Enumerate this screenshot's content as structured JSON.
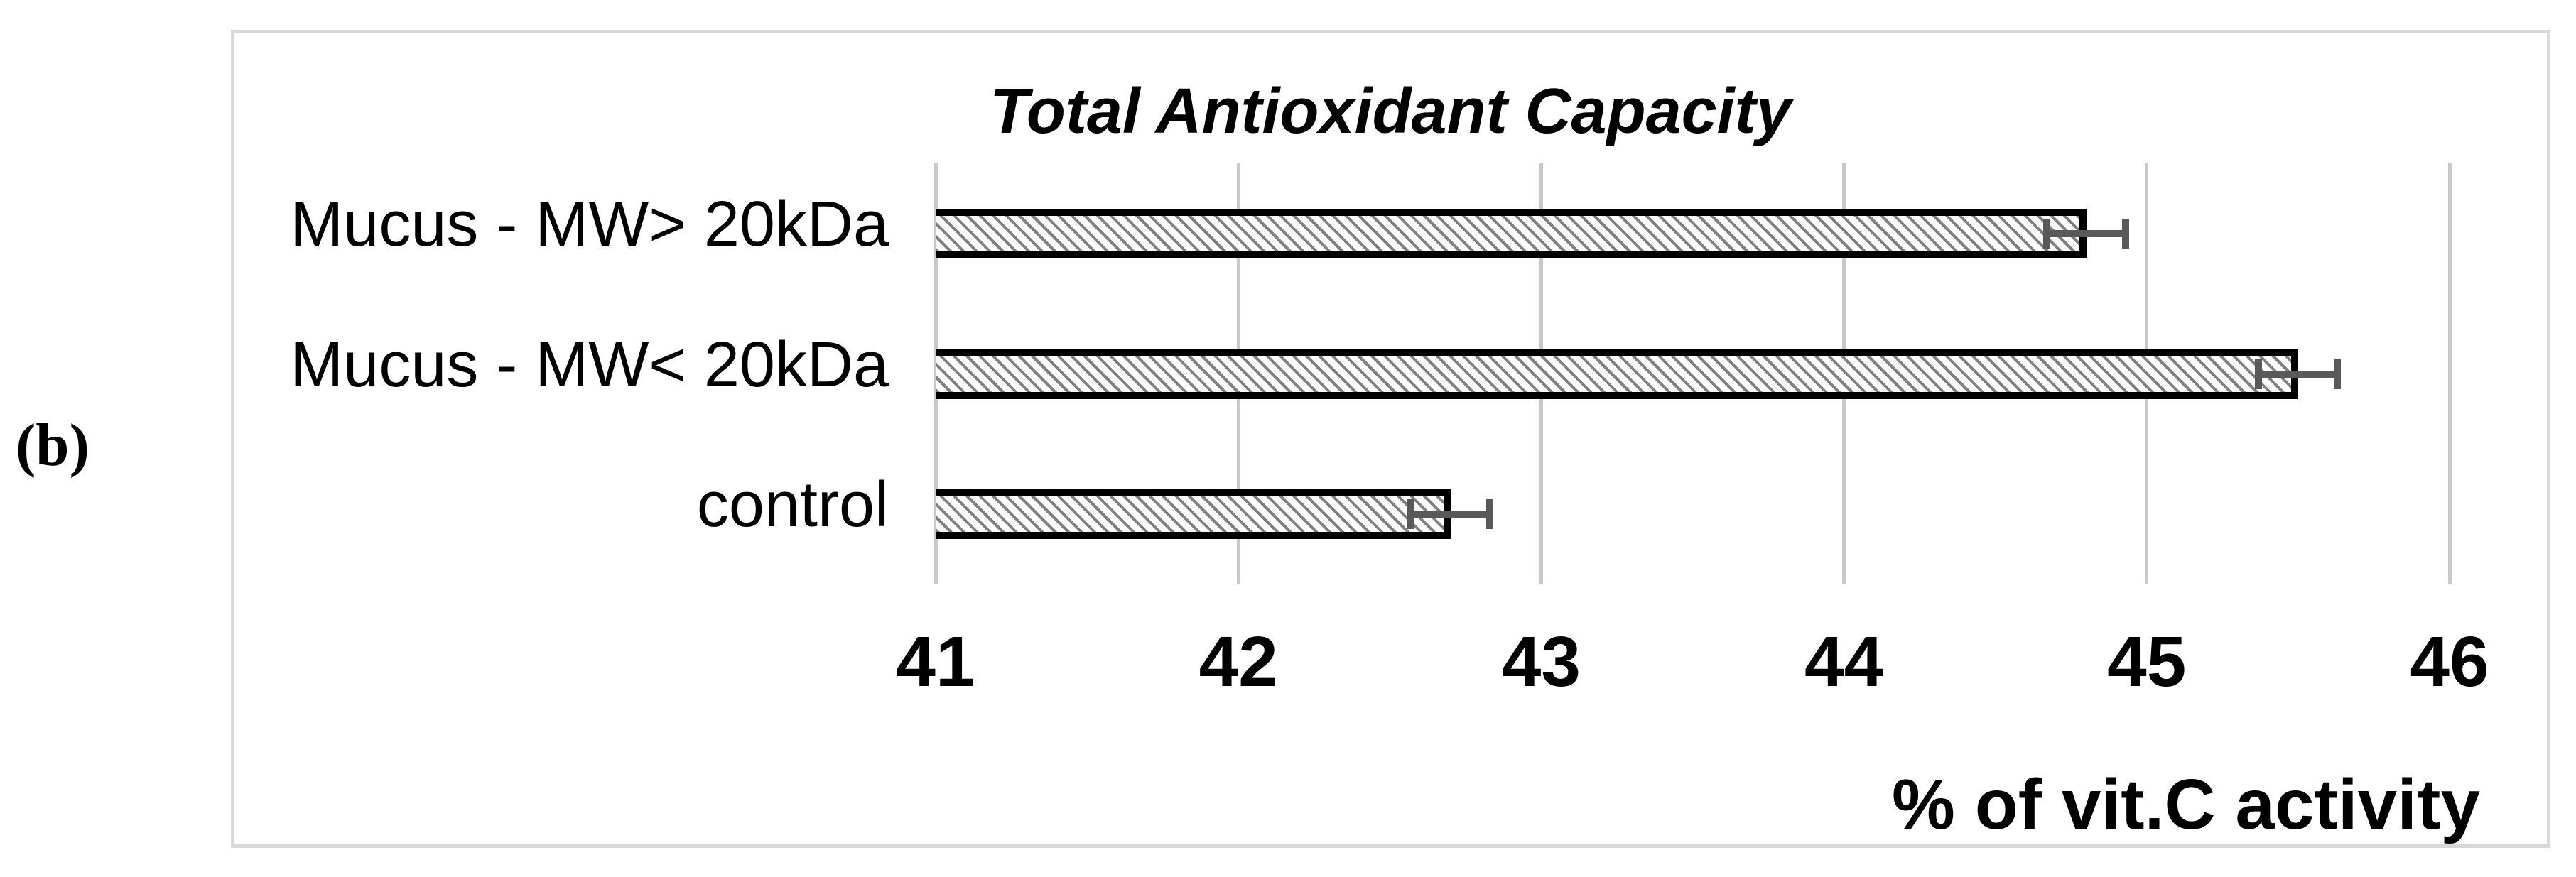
{
  "figure_label": "(b)",
  "chart_data": {
    "type": "bar",
    "orientation": "horizontal",
    "title": "Total Antioxidant Capacity",
    "xlabel": "% of vit.C activity",
    "categories": [
      "Mucus - MW> 20kDa",
      "Mucus - MW< 20kDa",
      "control"
    ],
    "values": [
      44.8,
      45.5,
      42.7
    ],
    "errors": [
      0.13,
      0.13,
      0.13
    ],
    "xlim": [
      41,
      46
    ],
    "xticks": [
      "41",
      "42",
      "43",
      "44",
      "45",
      "46"
    ],
    "grid": true,
    "legend": false,
    "bar_style": "white fill with gray diagonal hatch and black outline",
    "colors": {
      "bar_hatch": "#808080",
      "bar_border": "#000000",
      "error_bar": "#595959",
      "gridline": "#c9c9c9",
      "panel_border": "#d9d9d9",
      "text": "#000000",
      "background": "#ffffff"
    }
  }
}
